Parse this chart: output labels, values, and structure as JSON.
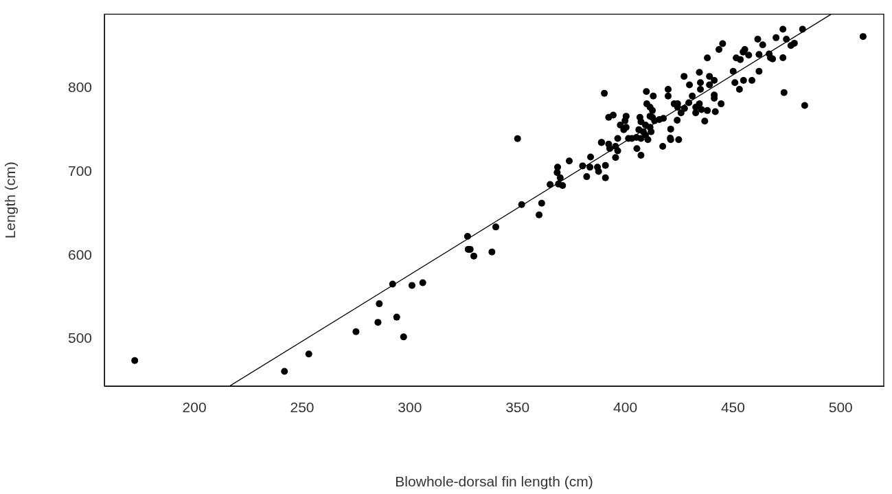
{
  "chart_data": {
    "type": "scatter",
    "xlabel": "Blowhole-dorsal fin length (cm)",
    "ylabel": "Length (cm)",
    "xlim": [
      158.2,
      520
    ],
    "ylim": [
      443.9,
      888.2
    ],
    "xticks": [
      200,
      250,
      300,
      350,
      400,
      450,
      500
    ],
    "yticks": [
      500,
      600,
      700,
      800
    ],
    "grid": false,
    "legend": false,
    "marker": "circle",
    "series": [
      {
        "color": "#000000",
        "x": [
          172.3,
          241.8,
          253.1,
          275.0,
          285.2,
          285.8,
          292.0,
          293.9,
          297.1,
          301.0,
          306.0,
          350.0,
          326.8,
          327.1,
          328.0,
          329.7,
          338.1,
          339.9,
          351.9,
          361.2,
          360.0,
          365.1,
          368.6,
          368.4,
          369.8,
          369.0,
          370.9,
          374.0,
          380.2,
          383.9,
          382.1,
          383.6,
          387.1,
          387.6,
          388.9,
          390.8,
          390.3,
          409.8,
          413.0,
          419.9,
          419.9,
          427.3,
          434.4,
          429.8,
          434.9,
          439.1,
          441.3,
          439.1,
          434.9,
          450.1,
          454.9,
          458.8,
          450.9,
          453.0,
          441.3,
          441.3,
          444.5,
          441.8,
          436.9,
          434.4,
          432.7,
          435.4,
          438.1,
          432.7,
          431.1,
          429.5,
          427.5,
          425.9,
          424.1,
          424.3,
          422.7,
          424.3,
          421.1,
          420.9,
          424.8,
          417.4,
          411.5,
          412.6,
          413.6,
          415.8,
          417.7,
          410.0,
          411.5,
          412.6,
          406.8,
          400.4,
          399.9,
          397.7,
          400.4,
          399.3,
          407.3,
          409.4,
          411.5,
          412.0,
          406.3,
          408.4,
          409.4,
          405.2,
          403.1,
          401.5,
          407.3,
          410.5,
          405.4,
          407.3,
          392.3,
          394.4,
          396.5,
          389.0,
          392.3,
          395.5,
          392.8,
          396.5,
          395.5,
          390.8,
          421.1,
          473.2,
          482.3,
          461.5,
          470.0,
          474.8,
          476.9,
          478.5,
          463.8,
          457.3,
          462.1,
          466.8,
          467.4,
          468.4,
          473.2,
          462.1,
          473.7,
          483.3,
          510.4,
          438.1,
          443.5,
          445.2,
          451.5,
          454.7,
          453.4,
          455.5
        ],
        "values": [
          474.4,
          461.6,
          482.2,
          508.9,
          520.1,
          542.3,
          565.8,
          526.3,
          502.7,
          564.2,
          567.4,
          739.6,
          622.8,
          607.3,
          607.3,
          599.3,
          604.1,
          634,
          660.7,
          662.4,
          648.4,
          684.8,
          705.4,
          699,
          692.8,
          685.3,
          683.5,
          712.8,
          707,
          717.6,
          694.1,
          705.4,
          705.4,
          700.3,
          734.8,
          692.8,
          793.6,
          795.7,
          790.4,
          798.4,
          790.4,
          813.9,
          818.8,
          803.8,
          806.4,
          813.9,
          809.1,
          803.8,
          798.4,
          819.9,
          809.1,
          809.1,
          806.4,
          798.4,
          791.7,
          787.8,
          781.1,
          771.7,
          760.5,
          781.1,
          777.1,
          774.3,
          773.1,
          770.4,
          790.4,
          782.4,
          775.7,
          770.4,
          761.5,
          781.1,
          781.1,
          777.1,
          750.9,
          740.1,
          738.3,
          730.3,
          766.3,
          765,
          761,
          762.3,
          763.7,
          781.1,
          777.1,
          773.1,
          765,
          766.3,
          761,
          755.7,
          753,
          750.3,
          759.6,
          755.7,
          753,
          747.7,
          750.3,
          747.7,
          743.7,
          741,
          739.7,
          739.7,
          739.7,
          738.3,
          727.6,
          719.6,
          765,
          767.7,
          739.7,
          735.1,
          733,
          730.3,
          727.6,
          724.9,
          716.9,
          707.6,
          738.3,
          870.3,
          870.3,
          858.3,
          860.1,
          858.3,
          850.8,
          853.5,
          851.6,
          839.3,
          840.1,
          840.7,
          836.1,
          834.7,
          836.1,
          820,
          794.6,
          779.2,
          861.5,
          836,
          846,
          853,
          836,
          843,
          834,
          846
        ]
      },
      {
        "type": "line",
        "color": "#000000",
        "marker": "none",
        "line_style": "solid",
        "x": [
          216.5,
          495.5
        ],
        "values": [
          444.2,
          888
        ]
      }
    ]
  }
}
